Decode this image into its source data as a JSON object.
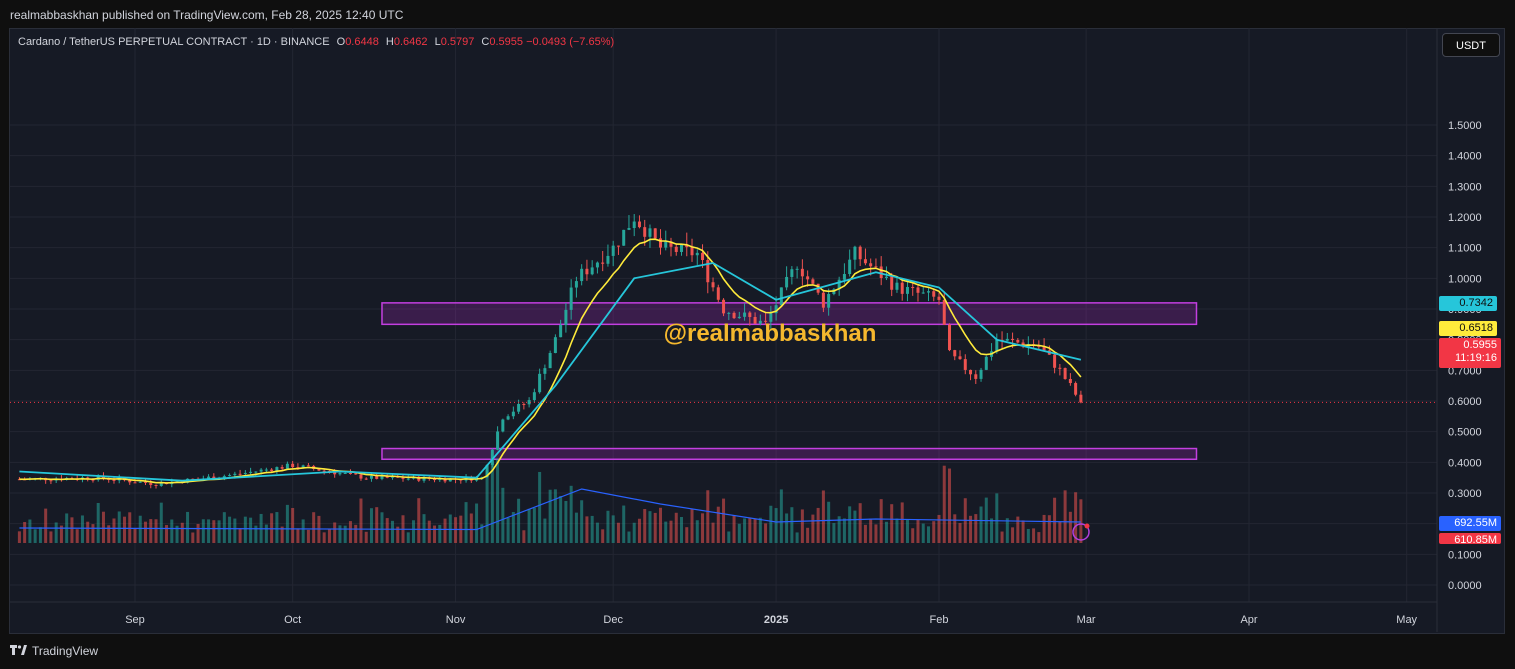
{
  "header": {
    "published_text": "realmabbaskhan published on TradingView.com, Feb 28, 2025 12:40 UTC"
  },
  "legend": {
    "symbol": "Cardano / TetherUS PERPETUAL CONTRACT · 1D · BINANCE",
    "open_label": "O",
    "open": "0.6448",
    "high_label": "H",
    "high": "0.6462",
    "low_label": "L",
    "low": "0.5797",
    "close_label": "C",
    "close": "0.5955",
    "change": "−0.0493 (−7.65%)"
  },
  "unit_button": "USDT",
  "watermark": "@realmabbaskhan",
  "footer": {
    "brand": "TradingView",
    "logo_icon": "tradingview-logo-icon"
  },
  "colors": {
    "up": "#26a69a",
    "down": "#ef5350",
    "ema_fast": "#ffeb3b",
    "ema_slow": "#26c6da",
    "volume_ma": "#2962ff",
    "zone": "#9c27b0",
    "watermark": "#f5b82e"
  },
  "badges": {
    "ema_slow": "0.7342",
    "ema_fast": "0.6518",
    "last_price": "0.5955",
    "countdown": "11:19:16",
    "volume_ma": "692.55M",
    "volume": "610.85M"
  },
  "chart_data": {
    "type": "candlestick",
    "y_axis_ticks": [
      "1.5000",
      "1.4000",
      "1.3000",
      "1.2000",
      "1.1000",
      "1.0000",
      "0.9000",
      "0.8000",
      "0.7000",
      "0.6000",
      "0.5000",
      "0.4000",
      "0.3000",
      "0.2000",
      "0.1000",
      "0.0000"
    ],
    "ylim": [
      0,
      1.5
    ],
    "x_axis_ticks": [
      "Sep",
      "Oct",
      "Nov",
      "Dec",
      "2025",
      "Feb",
      "Mar",
      "Apr",
      "May"
    ],
    "grid": true,
    "zones": [
      {
        "low": 0.85,
        "high": 0.92,
        "from": "2024-10-18",
        "to": "2025-03-22"
      },
      {
        "low": 0.41,
        "high": 0.445,
        "from": "2024-10-18",
        "to": "2025-03-22"
      }
    ],
    "last_price": 0.5955,
    "ema_fast_last": 0.6518,
    "ema_slow_last": 0.7342,
    "price_path": [
      [
        "2024-08-10",
        0.345
      ],
      [
        "2024-08-25",
        0.35
      ],
      [
        "2024-09-05",
        0.33
      ],
      [
        "2024-09-20",
        0.36
      ],
      [
        "2024-10-01",
        0.39
      ],
      [
        "2024-10-15",
        0.35
      ],
      [
        "2024-11-01",
        0.345
      ],
      [
        "2024-11-06",
        0.35
      ],
      [
        "2024-11-10",
        0.55
      ],
      [
        "2024-11-15",
        0.6
      ],
      [
        "2024-11-20",
        0.8
      ],
      [
        "2024-11-24",
        1.0
      ],
      [
        "2024-12-01",
        1.1
      ],
      [
        "2024-12-05",
        1.2
      ],
      [
        "2024-12-10",
        1.1
      ],
      [
        "2024-12-17",
        1.08
      ],
      [
        "2024-12-22",
        0.9
      ],
      [
        "2024-12-30",
        0.85
      ],
      [
        "2025-01-05",
        1.05
      ],
      [
        "2025-01-10",
        0.92
      ],
      [
        "2025-01-16",
        1.08
      ],
      [
        "2025-01-24",
        0.97
      ],
      [
        "2025-02-01",
        0.93
      ],
      [
        "2025-02-03",
        0.75
      ],
      [
        "2025-02-08",
        0.68
      ],
      [
        "2025-02-12",
        0.8
      ],
      [
        "2025-02-20",
        0.78
      ],
      [
        "2025-02-24",
        0.7
      ],
      [
        "2025-02-28",
        0.5955
      ]
    ],
    "ema_slow_path": [
      [
        "2024-08-10",
        0.37
      ],
      [
        "2024-09-10",
        0.34
      ],
      [
        "2024-10-10",
        0.37
      ],
      [
        "2024-11-05",
        0.35
      ],
      [
        "2024-11-20",
        0.65
      ],
      [
        "2024-12-05",
        1.0
      ],
      [
        "2024-12-20",
        1.05
      ],
      [
        "2025-01-01",
        0.93
      ],
      [
        "2025-01-20",
        1.02
      ],
      [
        "2025-02-01",
        0.97
      ],
      [
        "2025-02-12",
        0.8
      ],
      [
        "2025-02-28",
        0.7342
      ]
    ],
    "volume_ma_path": [
      [
        "2024-08-10",
        0.05
      ],
      [
        "2024-11-05",
        0.045
      ],
      [
        "2024-11-25",
        0.18
      ],
      [
        "2024-12-10",
        0.13
      ],
      [
        "2025-01-01",
        0.07
      ],
      [
        "2025-01-20",
        0.08
      ],
      [
        "2025-02-28",
        0.07
      ]
    ]
  }
}
